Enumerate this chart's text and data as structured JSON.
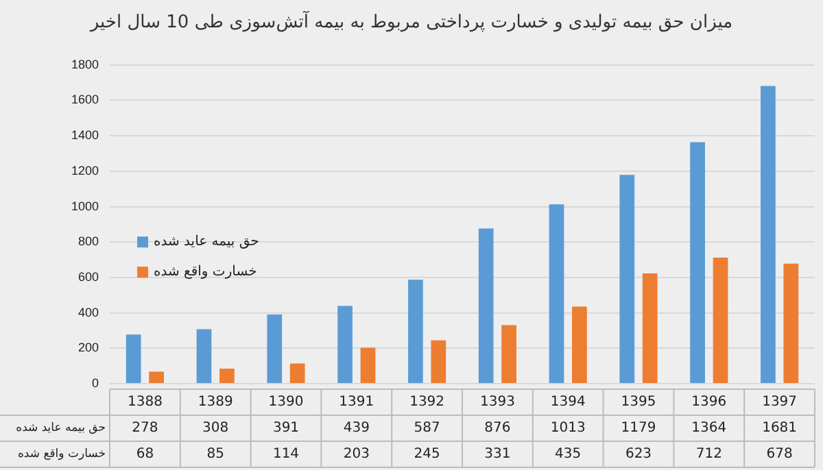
{
  "chart_data": {
    "type": "bar",
    "title": "میزان حق بیمه تولیدی و خسارت پرداختی مربوط به بیمه آتش‌سوزی طی 10 سال اخیر",
    "categories": [
      "1388",
      "1389",
      "1390",
      "1391",
      "1392",
      "1393",
      "1394",
      "1395",
      "1396",
      "1397"
    ],
    "series": [
      {
        "name": "حق بیمه عاید شده",
        "color": "#5b9bd5",
        "values": [
          278,
          308,
          391,
          439,
          587,
          876,
          1013,
          1179,
          1364,
          1681
        ]
      },
      {
        "name": "خسارت واقع شده",
        "color": "#ed7d31",
        "values": [
          68,
          85,
          114,
          203,
          245,
          331,
          435,
          623,
          712,
          678
        ]
      }
    ],
    "ylim": [
      0,
      1800
    ],
    "yticks": [
      0,
      200,
      400,
      600,
      800,
      1000,
      1200,
      1400,
      1600,
      1800
    ],
    "grid": "y",
    "legend": "left",
    "data_labels": true
  }
}
